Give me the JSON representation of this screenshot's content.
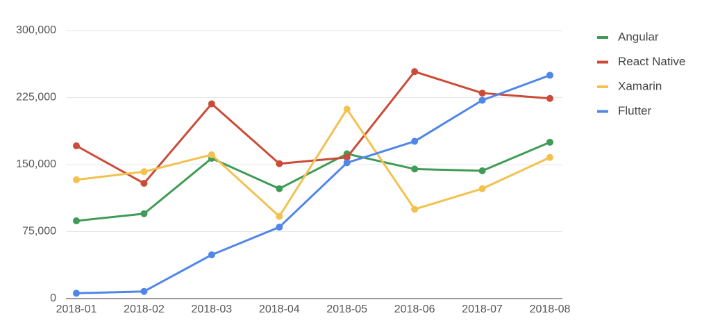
{
  "chart_data": {
    "type": "line",
    "x": [
      "2018-01",
      "2018-02",
      "2018-03",
      "2018-04",
      "2018-05",
      "2018-06",
      "2018-07",
      "2018-08"
    ],
    "series": [
      {
        "name": "Angular",
        "color": "#3f9b55",
        "values": [
          87000,
          95000,
          157000,
          123000,
          162000,
          145000,
          143000,
          175000
        ]
      },
      {
        "name": "React Native",
        "color": "#cc4b37",
        "values": [
          171000,
          129000,
          218000,
          151000,
          158000,
          254000,
          230000,
          224000
        ]
      },
      {
        "name": "Xamarin",
        "color": "#f2c14e",
        "values": [
          133000,
          142000,
          161000,
          92000,
          212000,
          100000,
          123000,
          158000
        ]
      },
      {
        "name": "Flutter",
        "color": "#4f86e8",
        "values": [
          6000,
          8000,
          49000,
          80000,
          152000,
          176000,
          222000,
          250000
        ]
      }
    ],
    "ylim": [
      0,
      300000
    ],
    "yticks": [
      0,
      {
        "value": 75000,
        "label": "75,000"
      },
      {
        "value": 150000,
        "label": "150,000"
      },
      {
        "value": 225000,
        "label": "225,000"
      },
      {
        "value": 300000,
        "label": "300,000"
      }
    ],
    "grid": true,
    "legend": "right"
  }
}
